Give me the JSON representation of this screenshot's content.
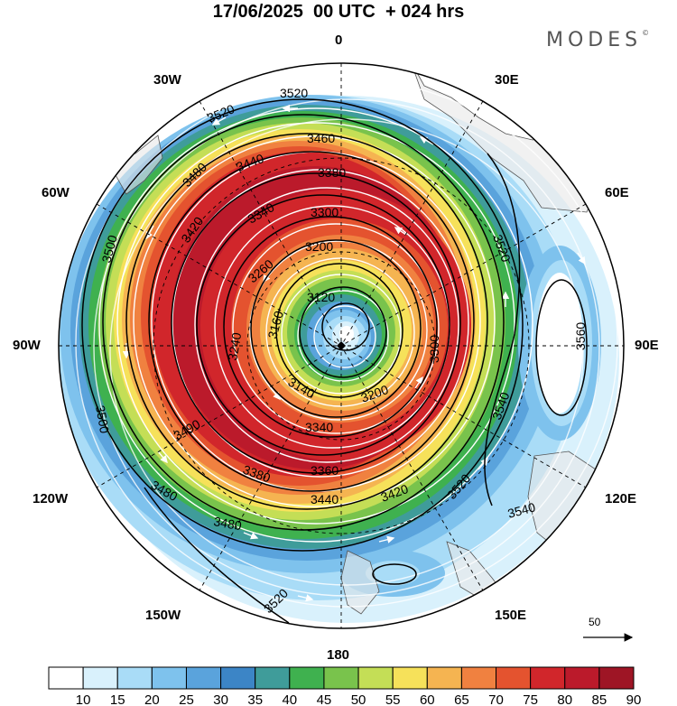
{
  "title": "17/06/2025  00 UTC  + 024 hrs",
  "brand": "MODES",
  "brand_mark": "©",
  "longitude_labels": {
    "top": "0",
    "bottom": "180",
    "left": "90W",
    "right": "90E",
    "nw1": "30W",
    "nw2": "60W",
    "ne1": "30E",
    "ne2": "60E",
    "sw1": "120W",
    "sw2": "150W",
    "se1": "120E",
    "se2": "150E"
  },
  "contour_labels": [
    "3520",
    "3520",
    "3460",
    "3440",
    "3380",
    "3480",
    "3500",
    "3420",
    "3340",
    "3300",
    "3200",
    "3260",
    "3120",
    "3160",
    "3240",
    "3520",
    "3560",
    "3540",
    "3540",
    "3520",
    "3380",
    "3360",
    "3340",
    "3300",
    "3200",
    "3140",
    "3490",
    "3440",
    "3420",
    "3500",
    "3480",
    "3480",
    "3520"
  ],
  "reference_vector": "50",
  "colorbar": {
    "colors": [
      "#ffffff",
      "#d9f1fc",
      "#a9dcf7",
      "#7ec2ed",
      "#5aa3dc",
      "#3c85c6",
      "#3f9c9a",
      "#3fb14f",
      "#79c34c",
      "#c4de56",
      "#f6e15a",
      "#f5b451",
      "#f08140",
      "#e4532f",
      "#d1262b",
      "#bb1a2b",
      "#9e1525"
    ],
    "ticks": [
      "10",
      "15",
      "20",
      "25",
      "30",
      "35",
      "40",
      "45",
      "50",
      "55",
      "60",
      "65",
      "70",
      "75",
      "80",
      "85",
      "90"
    ]
  }
}
